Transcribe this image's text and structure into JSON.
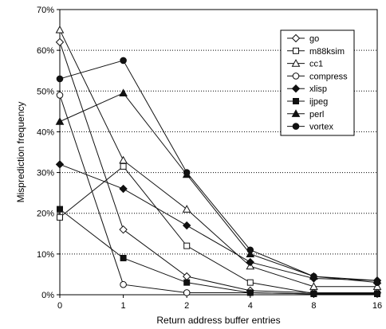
{
  "chart_data": {
    "type": "line",
    "xlabel": "Return address buffer entries",
    "ylabel": "Misprediction frequency",
    "x": [
      0,
      1,
      2,
      4,
      8,
      16
    ],
    "x_tick_labels": [
      "0",
      "1",
      "2",
      "4",
      "8",
      "16"
    ],
    "x_scale": "log2-like (categorical positions)",
    "ylim": [
      0,
      70
    ],
    "y_tick_labels": [
      "0%",
      "10%",
      "20%",
      "30%",
      "40%",
      "50%",
      "60%",
      "70%"
    ],
    "grid": "horizontal dotted",
    "legend_position": "top-right",
    "series": [
      {
        "name": "go",
        "marker": "diamond-open",
        "values": [
          62,
          16,
          4.5,
          1,
          0.5,
          0.5
        ]
      },
      {
        "name": "m88ksim",
        "marker": "square-open",
        "values": [
          19,
          31.5,
          12,
          3,
          0.3,
          0.3
        ]
      },
      {
        "name": "cc1",
        "marker": "triangle-open",
        "values": [
          65,
          33,
          21,
          7,
          2,
          2
        ]
      },
      {
        "name": "compress",
        "marker": "circle-open",
        "values": [
          49,
          2.5,
          0.5,
          0.5,
          0.2,
          0.2
        ]
      },
      {
        "name": "xlisp",
        "marker": "diamond-filled",
        "values": [
          32,
          26,
          17,
          8,
          4,
          3.5
        ]
      },
      {
        "name": "ijpeg",
        "marker": "square-filled",
        "values": [
          21,
          9,
          3,
          0.5,
          0.2,
          0.2
        ]
      },
      {
        "name": "perl",
        "marker": "triangle-filled",
        "values": [
          42.5,
          49.5,
          29.5,
          10,
          4.5,
          3.5
        ]
      },
      {
        "name": "vortex",
        "marker": "circle-filled",
        "values": [
          53,
          57.5,
          30,
          11,
          4.5,
          3
        ]
      }
    ]
  }
}
